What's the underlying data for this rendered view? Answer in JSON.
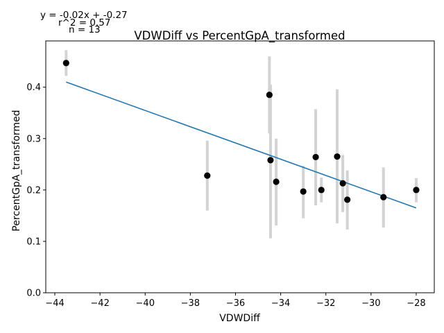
{
  "chart_data": {
    "type": "scatter",
    "title": "VDWDiff vs PercentGpA_transformed",
    "xlabel": "VDWDiff",
    "ylabel": "PercentGpA_transformed",
    "xlim": [
      -44.4,
      -27.2
    ],
    "ylim": [
      0.0,
      0.49
    ],
    "xticks": [
      -44,
      -42,
      -40,
      -38,
      -36,
      -34,
      -32,
      -30,
      -28
    ],
    "xtick_labels": [
      "−44",
      "−42",
      "−40",
      "−38",
      "−36",
      "−34",
      "−32",
      "−30",
      "−28"
    ],
    "yticks": [
      0.0,
      0.1,
      0.2,
      0.3,
      0.4
    ],
    "ytick_labels": [
      "0.0",
      "0.1",
      "0.2",
      "0.3",
      "0.4"
    ],
    "annotations": {
      "equation": "y = -0.02x + -0.27",
      "r2": "r^2 = 0.57",
      "n": "n = 13"
    },
    "points": [
      {
        "x": -43.5,
        "y": 0.447,
        "err_low": 0.422,
        "err_high": 0.472
      },
      {
        "x": -37.25,
        "y": 0.228,
        "err_low": 0.16,
        "err_high": 0.296
      },
      {
        "x": -34.5,
        "y": 0.385,
        "err_low": 0.31,
        "err_high": 0.46
      },
      {
        "x": -34.45,
        "y": 0.258,
        "err_low": 0.106,
        "err_high": 0.405
      },
      {
        "x": -34.2,
        "y": 0.216,
        "err_low": 0.131,
        "err_high": 0.3
      },
      {
        "x": -33.0,
        "y": 0.197,
        "err_low": 0.145,
        "err_high": 0.247
      },
      {
        "x": -32.45,
        "y": 0.264,
        "err_low": 0.17,
        "err_high": 0.357
      },
      {
        "x": -32.2,
        "y": 0.2,
        "err_low": 0.176,
        "err_high": 0.224
      },
      {
        "x": -31.5,
        "y": 0.265,
        "err_low": 0.135,
        "err_high": 0.396
      },
      {
        "x": -31.25,
        "y": 0.213,
        "err_low": 0.157,
        "err_high": 0.268
      },
      {
        "x": -31.05,
        "y": 0.181,
        "err_low": 0.123,
        "err_high": 0.238
      },
      {
        "x": -29.45,
        "y": 0.186,
        "err_low": 0.127,
        "err_high": 0.244
      },
      {
        "x": -28.0,
        "y": 0.2,
        "err_low": 0.176,
        "err_high": 0.223
      }
    ],
    "fit_line": {
      "x": [
        -43.5,
        -28.0
      ],
      "y": [
        0.41,
        0.165
      ]
    },
    "colors": {
      "points": "#000000",
      "error_bars": "#d3d3d3",
      "fit_line": "#1f77b4",
      "axes": "#000000"
    }
  }
}
